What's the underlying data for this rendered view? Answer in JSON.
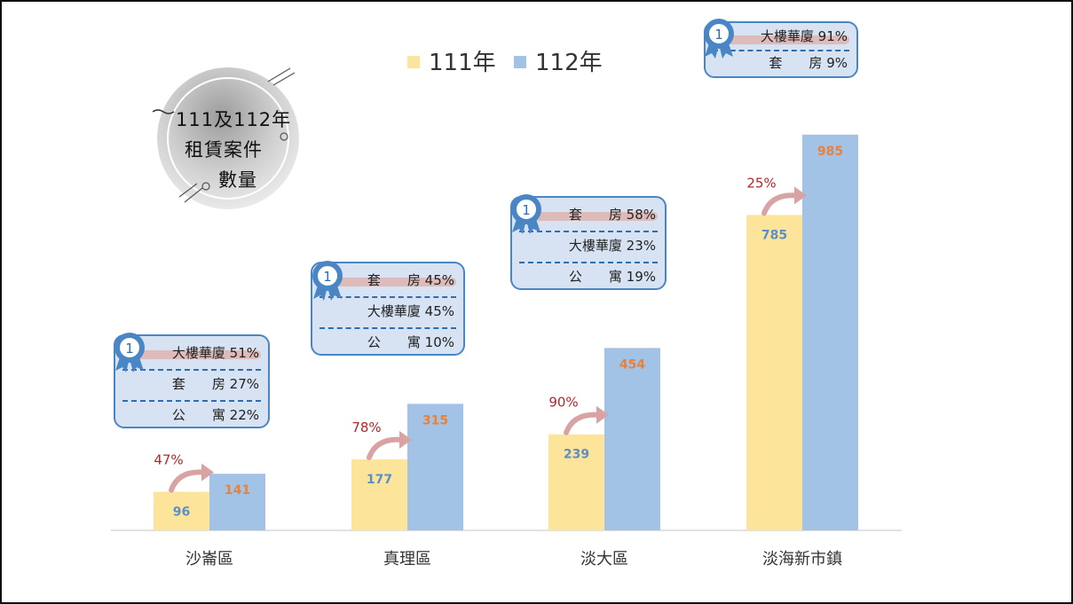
{
  "chart_data": {
    "type": "bar",
    "categories": [
      "沙崙區",
      "真理區",
      "淡大區",
      "淡海新市鎮"
    ],
    "series": [
      {
        "name": "111年",
        "values": [
          96,
          177,
          239,
          785
        ],
        "color": "#fde49b"
      },
      {
        "name": "112年",
        "values": [
          141,
          315,
          454,
          985
        ],
        "color": "#a3c3e6"
      }
    ],
    "growth_labels": [
      "47%",
      "78%",
      "90%",
      "25%"
    ],
    "ylim": [
      0,
      1000
    ],
    "legend_position": "top-center",
    "grid": false,
    "title_lines": [
      "111及112年",
      "租賃案件",
      "數量"
    ],
    "callouts": [
      {
        "category": "沙崙區",
        "rank_badge": "1",
        "rows": [
          {
            "label": "大樓華廈",
            "pct": "51%"
          },
          {
            "label": "套　　房",
            "pct": "27%"
          },
          {
            "label": "公　　寓",
            "pct": "22%"
          }
        ]
      },
      {
        "category": "真理區",
        "rank_badge": "1",
        "rows": [
          {
            "label": "套　　房",
            "pct": "45%"
          },
          {
            "label": "大樓華廈",
            "pct": "45%"
          },
          {
            "label": "公　　寓",
            "pct": "10%"
          }
        ]
      },
      {
        "category": "淡大區",
        "rank_badge": "1",
        "rows": [
          {
            "label": "套　　房",
            "pct": "58%"
          },
          {
            "label": "大樓華廈",
            "pct": "23%"
          },
          {
            "label": "公　　寓",
            "pct": "19%"
          }
        ]
      },
      {
        "category": "淡海新市鎮",
        "rank_badge": "1",
        "rows": [
          {
            "label": "大樓華廈",
            "pct": "91%"
          },
          {
            "label": "套　　房",
            "pct": "9%"
          }
        ]
      }
    ]
  }
}
